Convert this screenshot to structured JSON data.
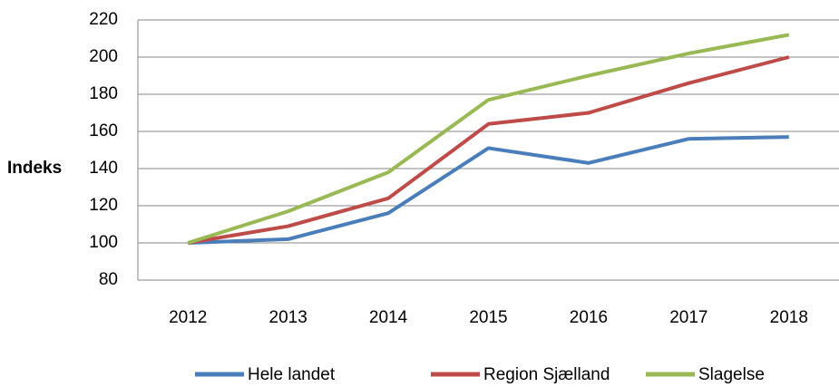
{
  "chart_data": {
    "type": "line",
    "y_label": "Indeks",
    "categories": [
      "2012",
      "2013",
      "2014",
      "2015",
      "2016",
      "2017",
      "2018"
    ],
    "series": [
      {
        "name": "Hele landet",
        "color": "#4a7ebb",
        "values": [
          100,
          102,
          116,
          151,
          143,
          156,
          157
        ]
      },
      {
        "name": "Region Sjælland",
        "color": "#be4b48",
        "values": [
          100,
          109,
          124,
          164,
          170,
          186,
          200
        ]
      },
      {
        "name": "Slagelse",
        "color": "#98b954",
        "values": [
          100,
          117,
          138,
          177,
          190,
          202,
          212
        ]
      }
    ],
    "ylim": [
      80,
      220
    ],
    "yticks": [
      80,
      100,
      120,
      140,
      160,
      180,
      200,
      220
    ],
    "grid": true,
    "legend": "bottom"
  }
}
